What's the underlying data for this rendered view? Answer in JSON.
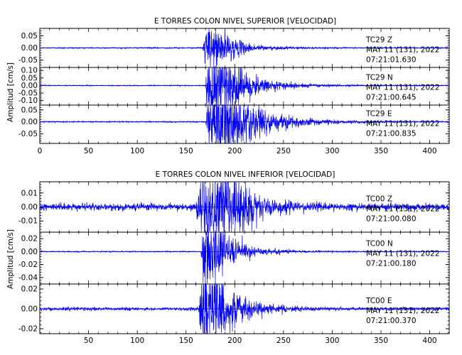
{
  "chart_data": [
    {
      "type": "line",
      "title": "E TORRES COLON NIVEL SUPERIOR [VELOCIDAD]",
      "ylabel": "Amplitud [cm/s]",
      "xlabel": "",
      "xlim": [
        0,
        420
      ],
      "x_ticks": [
        "0",
        "50",
        "100",
        "150",
        "200",
        "250",
        "300",
        "350",
        "400"
      ],
      "grid": false,
      "line_color": "#0000ff",
      "panels": [
        {
          "channel": "TC29   Z",
          "date": "MAY 11 (131), 2022",
          "time": "07:21:01.630",
          "ylim": [
            -0.08,
            0.08
          ],
          "y_ticks": [
            "0.05",
            "0.00",
            "-0.05"
          ],
          "noise": 0.0012,
          "series": [
            {
              "onset": 167,
              "peak": 0.06,
              "rise": 6,
              "decay": 10
            },
            {
              "onset": 178,
              "peak": 0.015,
              "rise": 4,
              "decay": 25
            }
          ]
        },
        {
          "channel": "TC29   N",
          "date": "MAY 11 (131), 2022",
          "time": "07:21:00.645",
          "ylim": [
            -0.13,
            0.12
          ],
          "y_ticks": [
            "0.10",
            "0.05",
            "0.00",
            "-0.05",
            "-0.10"
          ],
          "noise": 0.0015,
          "series": [
            {
              "onset": 170,
              "peak": 0.12,
              "rise": 3,
              "decay": 14
            },
            {
              "onset": 180,
              "peak": 0.04,
              "rise": 8,
              "decay": 35
            }
          ]
        },
        {
          "channel": "TC29   E",
          "date": "MAY 11 (131), 2022",
          "time": "07:21:00.835",
          "ylim": [
            -0.09,
            0.07
          ],
          "y_ticks": [
            "0.05",
            "0.00",
            "-0.05"
          ],
          "noise": 0.0013,
          "series": [
            {
              "onset": 170,
              "peak": 0.075,
              "rise": 5,
              "decay": 18
            },
            {
              "onset": 180,
              "peak": 0.03,
              "rise": 10,
              "decay": 40
            }
          ]
        }
      ]
    },
    {
      "type": "line",
      "title": "E TORRES COLON NIVEL INFERIOR [VELOCIDAD]",
      "ylabel": "Amplitud [cm/s]",
      "xlabel": "",
      "xlim": [
        0,
        420
      ],
      "x_ticks": [
        "50",
        "100",
        "150",
        "200",
        "250",
        "300",
        "350",
        "400"
      ],
      "grid": false,
      "line_color": "#0000ff",
      "panels": [
        {
          "channel": "TC00   Z",
          "date": "MAY 11 (131), 2022",
          "time": "07:21:00.080",
          "ylim": [
            -0.018,
            0.018
          ],
          "y_ticks": [
            "0.01",
            "0.00",
            "-0.01"
          ],
          "noise": 0.0012,
          "series": [
            {
              "onset": 160,
              "peak": 0.017,
              "rise": 10,
              "decay": 18
            },
            {
              "onset": 178,
              "peak": 0.006,
              "rise": 6,
              "decay": 30
            }
          ]
        },
        {
          "channel": "TC00   N",
          "date": "MAY 11 (131), 2022",
          "time": "07:21:00.180",
          "ylim": [
            -0.05,
            0.03
          ],
          "y_ticks": [
            "0.02",
            "0.00",
            "-0.02",
            "-0.04"
          ],
          "noise": 0.0004,
          "series": [
            {
              "onset": 165,
              "peak": 0.032,
              "rise": 5,
              "decay": 12
            },
            {
              "onset": 176,
              "peak": 0.006,
              "rise": 6,
              "decay": 30
            }
          ]
        },
        {
          "channel": "TC00   E",
          "date": "MAY 11 (131), 2022",
          "time": "07:21:00.370",
          "ylim": [
            -0.025,
            0.025
          ],
          "y_ticks": [
            "0.02",
            "0.00",
            "-0.02"
          ],
          "noise": 0.0008,
          "series": [
            {
              "onset": 163,
              "peak": 0.024,
              "rise": 6,
              "decay": 14
            },
            {
              "onset": 176,
              "peak": 0.006,
              "rise": 6,
              "decay": 28
            }
          ]
        }
      ]
    }
  ]
}
